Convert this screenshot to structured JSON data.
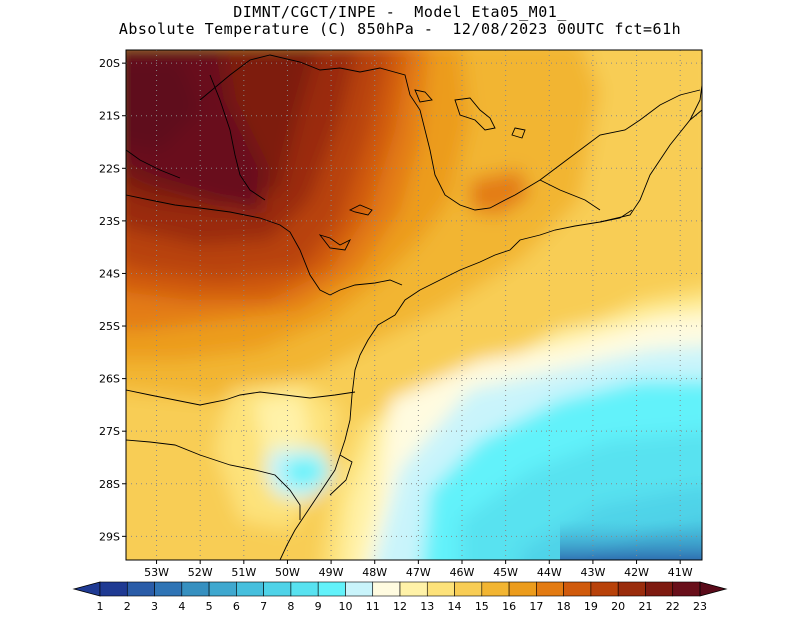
{
  "header": {
    "line1": "DIMNT/CGCT/INPE -  Model Eta05_M01_",
    "line2": "Absolute Temperature (C) 850hPa -  12/08/2023 00UTC fct=61h"
  },
  "map": {
    "lat_labels": [
      "20S",
      "21S",
      "22S",
      "23S",
      "24S",
      "25S",
      "26S",
      "27S",
      "28S",
      "29S"
    ],
    "lat_values": [
      -20,
      -21,
      -22,
      -23,
      -24,
      -25,
      -26,
      -27,
      -28,
      -29
    ],
    "lon_labels": [
      "53W",
      "52W",
      "51W",
      "50W",
      "49W",
      "48W",
      "47W",
      "46W",
      "45W",
      "44W",
      "43W",
      "42W",
      "41W"
    ],
    "lon_values": [
      -53,
      -52,
      -51,
      -50,
      -49,
      -48,
      -47,
      -46,
      -45,
      -44,
      -43,
      -42,
      -41
    ],
    "lon_range": [
      -53.7,
      -40.5
    ],
    "lat_range": [
      -29.45,
      -19.75
    ],
    "grid": "dotted"
  },
  "colorbar": {
    "labels": [
      "1",
      "2",
      "3",
      "4",
      "5",
      "6",
      "7",
      "8",
      "9",
      "10",
      "11",
      "12",
      "13",
      "14",
      "15",
      "16",
      "17",
      "18",
      "19",
      "20",
      "21",
      "22",
      "23"
    ],
    "colors": [
      "#1f3a93",
      "#2a5ca8",
      "#2f74b5",
      "#3690c0",
      "#3fa8cf",
      "#46bfdd",
      "#4fd3e8",
      "#58e2f0",
      "#62f2fa",
      "#c9f4fb",
      "#fffbe0",
      "#fff2a8",
      "#fde27a",
      "#f8cd55",
      "#f2b532",
      "#ec9c1c",
      "#e37b12",
      "#d05a0c",
      "#b8420a",
      "#9a2c0c",
      "#7e1a10",
      "#690f1a"
    ],
    "under_color": "#1f3a93",
    "over_color": "#5a0b1a"
  }
}
